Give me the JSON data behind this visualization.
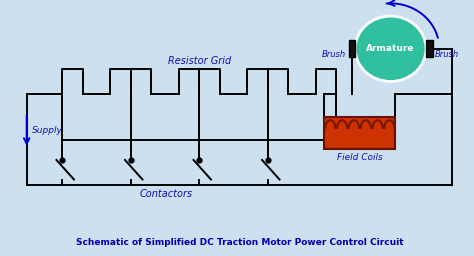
{
  "bg_color": "#cce0f0",
  "line_color": "#000000",
  "armature_color": "#30c0a0",
  "brush_color": "#111111",
  "field_coil_fill": "#cc3300",
  "coil_arc_color": "#7a1500",
  "arrow_color": "#0000cc",
  "label_color": "#1010aa",
  "title_color": "#0000aa",
  "title": "Schematic of Simplified DC Traction Motor Power Control Circuit",
  "supply_label": "Supply",
  "resistor_label": "Resistor Grid",
  "contactor_label": "Contactors",
  "armature_label": "Armature",
  "brush_left_label": "Brush",
  "brush_right_label": "Brush",
  "field_label": "Field Coils"
}
